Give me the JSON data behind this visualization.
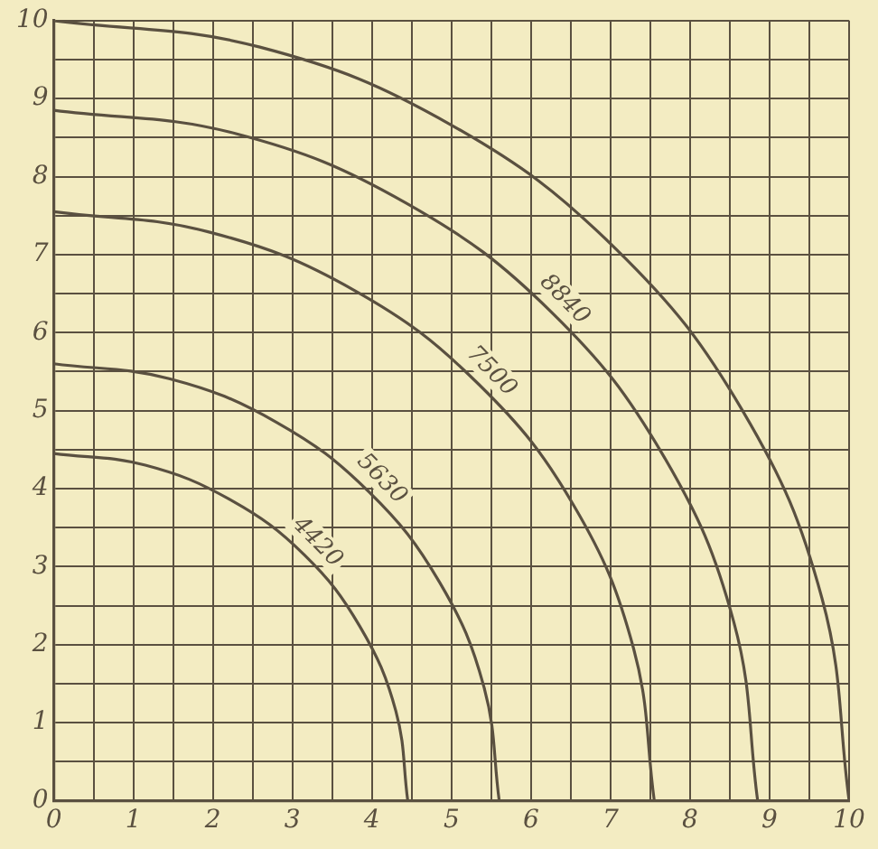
{
  "chart_data": {
    "type": "line",
    "xlim": [
      0,
      10
    ],
    "ylim": [
      0,
      10
    ],
    "xticks": [
      0,
      {
        "value": 0.5,
        "label": null
      },
      1,
      {
        "value": 1.5,
        "label": null
      },
      2,
      {
        "value": 2.5,
        "label": null
      },
      3,
      {
        "value": 3.5,
        "label": null
      },
      4,
      {
        "value": 4.5,
        "label": null
      },
      5,
      {
        "value": 5.5,
        "label": null
      },
      6,
      {
        "value": 6.5,
        "label": null
      },
      7,
      {
        "value": 7.5,
        "label": null
      },
      8,
      {
        "value": 8.5,
        "label": null
      },
      9,
      {
        "value": 9.5,
        "label": null
      },
      10
    ],
    "yticks": [
      0,
      {
        "value": 0.5,
        "label": null
      },
      1,
      {
        "value": 1.5,
        "label": null
      },
      2,
      {
        "value": 2.5,
        "label": null
      },
      3,
      {
        "value": 3.5,
        "label": null
      },
      4,
      {
        "value": 4.5,
        "label": null
      },
      5,
      {
        "value": 5.5,
        "label": null
      },
      6,
      {
        "value": 6.5,
        "label": null
      },
      7,
      {
        "value": 7.5,
        "label": null
      },
      8,
      {
        "value": 8.5,
        "label": null
      },
      9,
      {
        "value": 9.5,
        "label": null
      },
      10
    ],
    "grid": true,
    "legend": false,
    "marker": "none",
    "line_style": "solid",
    "series": [
      {
        "name": "4420",
        "color": "#5a5040",
        "x": [
          0,
          1.15,
          2.23,
          3.15,
          3.85,
          4.3,
          4.45
        ],
        "values": [
          4.45,
          4.3,
          3.85,
          3.15,
          2.23,
          1.15,
          0
        ]
      },
      {
        "name": "5630",
        "color": "#5a5040",
        "x": [
          0,
          1.45,
          2.8,
          3.96,
          4.85,
          5.41,
          5.6
        ],
        "values": [
          5.6,
          5.41,
          4.85,
          3.96,
          2.8,
          1.45,
          0
        ]
      },
      {
        "name": "7500",
        "color": "#5a5040",
        "x": [
          0,
          1.95,
          3.78,
          5.34,
          6.54,
          7.29,
          7.55
        ],
        "values": [
          7.55,
          7.29,
          6.54,
          5.34,
          3.78,
          1.95,
          0
        ]
      },
      {
        "name": "8840",
        "color": "#5a5040",
        "x": [
          0,
          2.29,
          4.43,
          6.26,
          7.66,
          8.55,
          8.85
        ],
        "values": [
          8.85,
          8.55,
          7.66,
          6.26,
          4.43,
          2.29,
          0
        ]
      },
      {
        "color": "#5a5040",
        "x": [
          0,
          2.59,
          5,
          7.07,
          8.66,
          9.66,
          10
        ],
        "values": [
          10,
          9.66,
          8.66,
          7.07,
          5,
          2.59,
          0
        ]
      }
    ]
  }
}
